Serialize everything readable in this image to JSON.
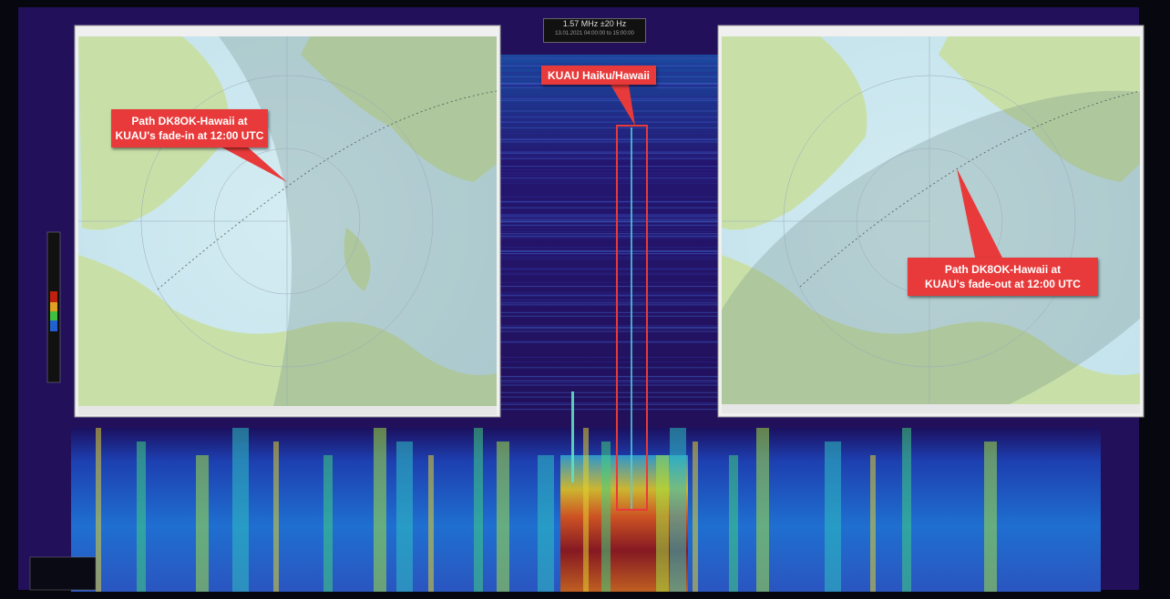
{
  "frequency_box": {
    "range": "1.57 MHz ±20 Hz",
    "time": "13.01.2021 04:00:00 to 15:00:00"
  },
  "signal_callout": {
    "label": "KUAU Haiku/Hawaii"
  },
  "left_callout": {
    "lines": [
      "Path DK8OK-Hawaii at",
      "KUAU's fade-in at 12:00 UTC"
    ]
  },
  "right_callout": {
    "lines": [
      "Path DK8OK-Hawaii at",
      "KUAU's fade-out at 12:00 UTC"
    ]
  }
}
